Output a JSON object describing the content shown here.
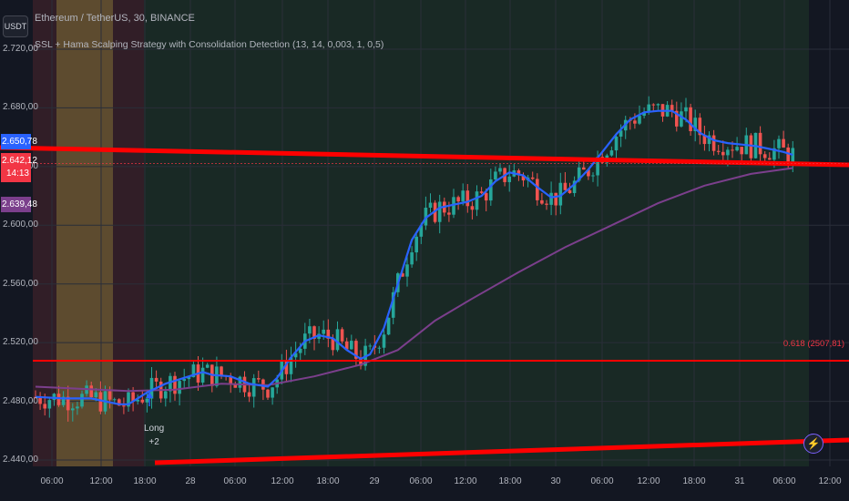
{
  "symbol_button": "USDT",
  "header": {
    "title": "Ethereum / TetherUS, 30, BINANCE",
    "indicator_name": "SSL + Hama Scalping Strategy with Consolidation Detection",
    "indicator_params": "(13, 14, 0,003, 1, 0,5)"
  },
  "price_tags": {
    "blue": "2.650,78",
    "red_price": "2.642,12",
    "red_timer": "14:13",
    "purple": "2.639,48"
  },
  "fib_label": "0.618 (2507,81)",
  "long_signal": {
    "line1": "Long",
    "line2": "+2"
  },
  "flash_icon": "lightning-icon",
  "colors": {
    "background": "#131722",
    "up_candle": "#26a69a",
    "down_candle": "#ef5350",
    "ssl_line": "#2962ff",
    "ma_line": "#7b3f8c",
    "trend_line": "#ff0000",
    "zone_green": "#1b2b26",
    "zone_orange": "#6b5531",
    "zone_red": "#3a2029"
  },
  "chart_data": {
    "type": "candlestick",
    "title": "Ethereum / TetherUS, 30, BINANCE",
    "y_axis": {
      "ticks": [
        "2.720,00",
        "2.680,00",
        "2.640,00",
        "2.600,00",
        "2.560,00",
        "2.520,00",
        "2.480,00",
        "2.440,00"
      ],
      "range": [
        2434,
        2724
      ]
    },
    "x_axis": {
      "ticks": [
        "06:00",
        "12:00",
        "18:00",
        "28",
        "06:00",
        "12:00",
        "18:00",
        "29",
        "06:00",
        "12:00",
        "18:00",
        "30",
        "06:00",
        "12:00",
        "18:00",
        "31",
        "06:00",
        "12:00"
      ]
    },
    "ssl_line": [
      [
        0,
        2483
      ],
      [
        6,
        2482
      ],
      [
        12,
        2482
      ],
      [
        18,
        2478
      ],
      [
        20,
        2478
      ],
      [
        24,
        2486
      ],
      [
        28,
        2492
      ],
      [
        32,
        2496
      ],
      [
        36,
        2500
      ],
      [
        38,
        2498
      ],
      [
        42,
        2497
      ],
      [
        46,
        2492
      ],
      [
        50,
        2490
      ],
      [
        52,
        2496
      ],
      [
        55,
        2510
      ],
      [
        58,
        2521
      ],
      [
        61,
        2525
      ],
      [
        64,
        2523
      ],
      [
        67,
        2515
      ],
      [
        70,
        2509
      ],
      [
        72,
        2512
      ],
      [
        75,
        2530
      ],
      [
        78,
        2560
      ],
      [
        81,
        2590
      ],
      [
        84,
        2605
      ],
      [
        87,
        2612
      ],
      [
        90,
        2614
      ],
      [
        93,
        2616
      ],
      [
        96,
        2620
      ],
      [
        99,
        2630
      ],
      [
        102,
        2636
      ],
      [
        105,
        2634
      ],
      [
        108,
        2626
      ],
      [
        111,
        2619
      ],
      [
        113,
        2620
      ],
      [
        116,
        2628
      ],
      [
        119,
        2638
      ],
      [
        122,
        2650
      ],
      [
        125,
        2662
      ],
      [
        128,
        2672
      ],
      [
        131,
        2677
      ],
      [
        134,
        2678
      ],
      [
        137,
        2678
      ],
      [
        140,
        2672
      ],
      [
        143,
        2663
      ],
      [
        146,
        2658
      ],
      [
        149,
        2656
      ],
      [
        152,
        2655
      ],
      [
        155,
        2654
      ],
      [
        158,
        2652
      ],
      [
        161,
        2650
      ],
      [
        163,
        2648
      ]
    ],
    "ma_line": [
      [
        0,
        2490
      ],
      [
        20,
        2487
      ],
      [
        30,
        2488
      ],
      [
        40,
        2492
      ],
      [
        50,
        2491
      ],
      [
        60,
        2497
      ],
      [
        70,
        2505
      ],
      [
        78,
        2515
      ],
      [
        86,
        2535
      ],
      [
        94,
        2550
      ],
      [
        104,
        2568
      ],
      [
        114,
        2585
      ],
      [
        124,
        2600
      ],
      [
        134,
        2615
      ],
      [
        144,
        2627
      ],
      [
        154,
        2635
      ],
      [
        163,
        2639
      ]
    ],
    "trend_lines": [
      {
        "from": [
          0,
          2651
        ],
        "to": [
          163,
          2640
        ]
      },
      {
        "from": [
          0,
          2510
        ],
        "to": [
          163,
          2510
        ]
      },
      {
        "from": [
          24,
          2440
        ],
        "to": [
          163,
          2452
        ]
      }
    ],
    "fib_level": {
      "ratio": 0.618,
      "price": 2507.81
    },
    "signals": [
      {
        "type": "Long",
        "size": 2,
        "bar": 24
      }
    ],
    "last_price": 2642.12
  }
}
